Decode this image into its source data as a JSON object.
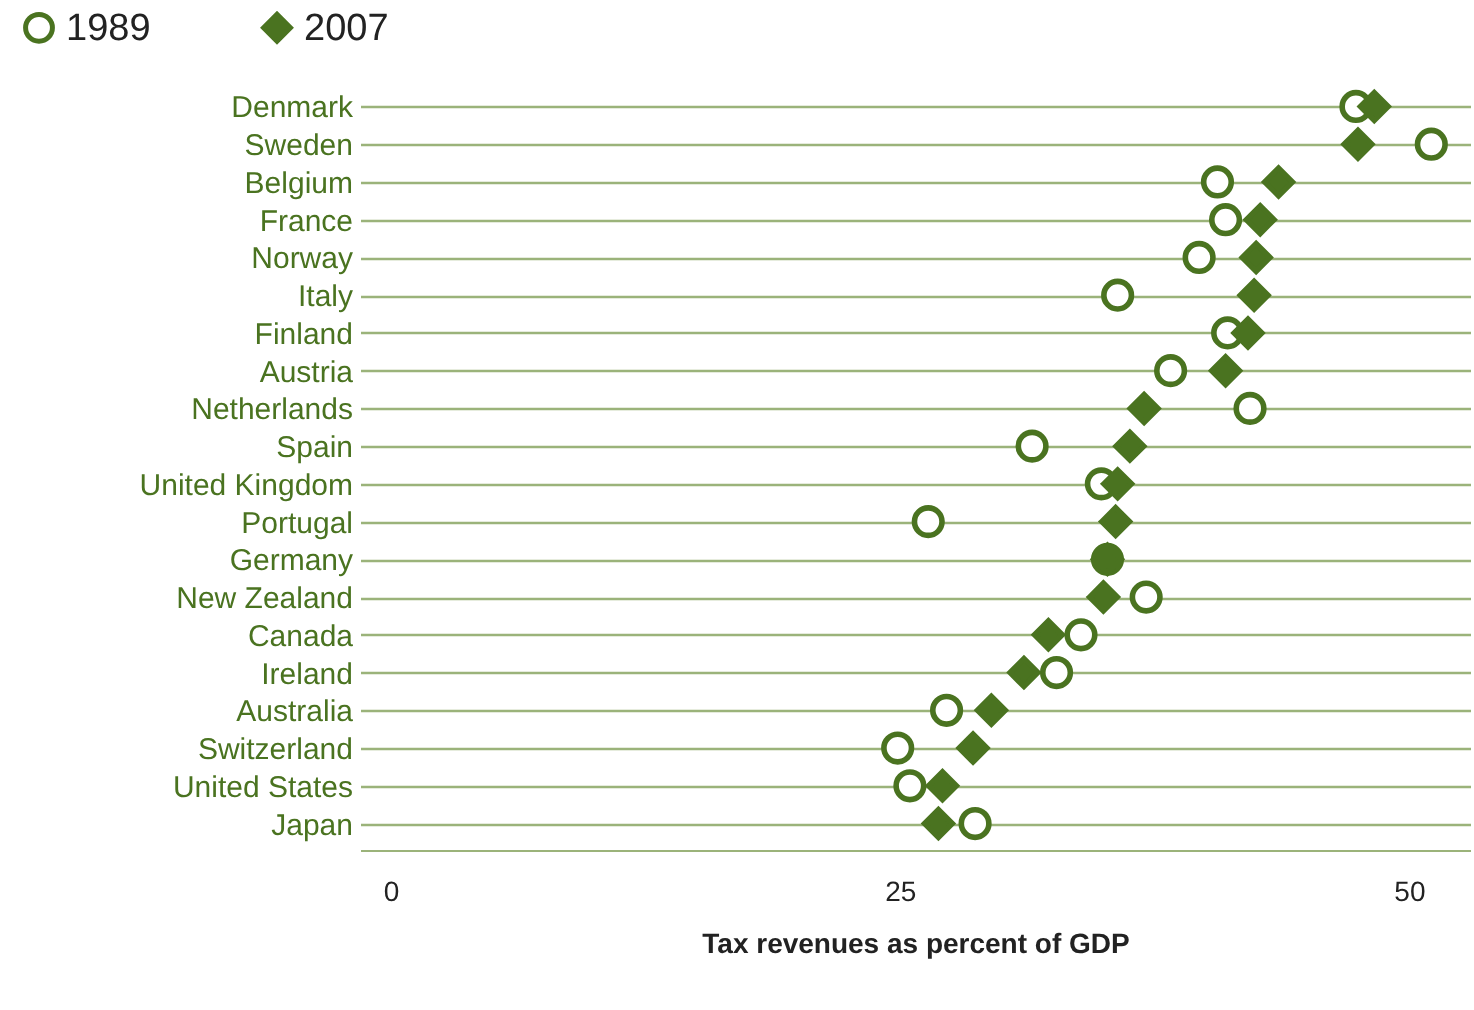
{
  "chart_data": {
    "type": "scatter",
    "xlabel": "Tax revenues as percent of GDP",
    "categories": [
      "Denmark",
      "Sweden",
      "Belgium",
      "France",
      "Norway",
      "Italy",
      "Finland",
      "Austria",
      "Netherlands",
      "Spain",
      "United Kingdom",
      "Portugal",
      "Germany",
      "New Zealand",
      "Canada",
      "Ireland",
      "Australia",
      "Switzerland",
      "United States",
      "Japan"
    ],
    "orientation": "horizontal",
    "series": [
      {
        "name": "1989",
        "color": "#4a7320",
        "marker": "circle",
        "values": [
          47.4,
          51.1,
          40.6,
          41.0,
          39.7,
          35.7,
          41.1,
          38.3,
          42.2,
          31.5,
          34.9,
          26.4,
          35.2,
          37.1,
          33.9,
          32.7,
          27.3,
          24.9,
          25.5,
          28.7
        ]
      },
      {
        "name": "2007",
        "color": "#4a7320",
        "marker": "diamond",
        "values": [
          48.3,
          47.5,
          43.6,
          42.7,
          42.5,
          42.4,
          42.1,
          41.0,
          37.0,
          36.3,
          35.7,
          35.6,
          35.2,
          35.0,
          32.3,
          31.1,
          29.5,
          28.6,
          27.1,
          26.9
        ]
      }
    ],
    "xlim": [
      -1.5,
      53
    ],
    "xticks": [
      0,
      25,
      50
    ],
    "grid": "y",
    "legend": "top left"
  }
}
